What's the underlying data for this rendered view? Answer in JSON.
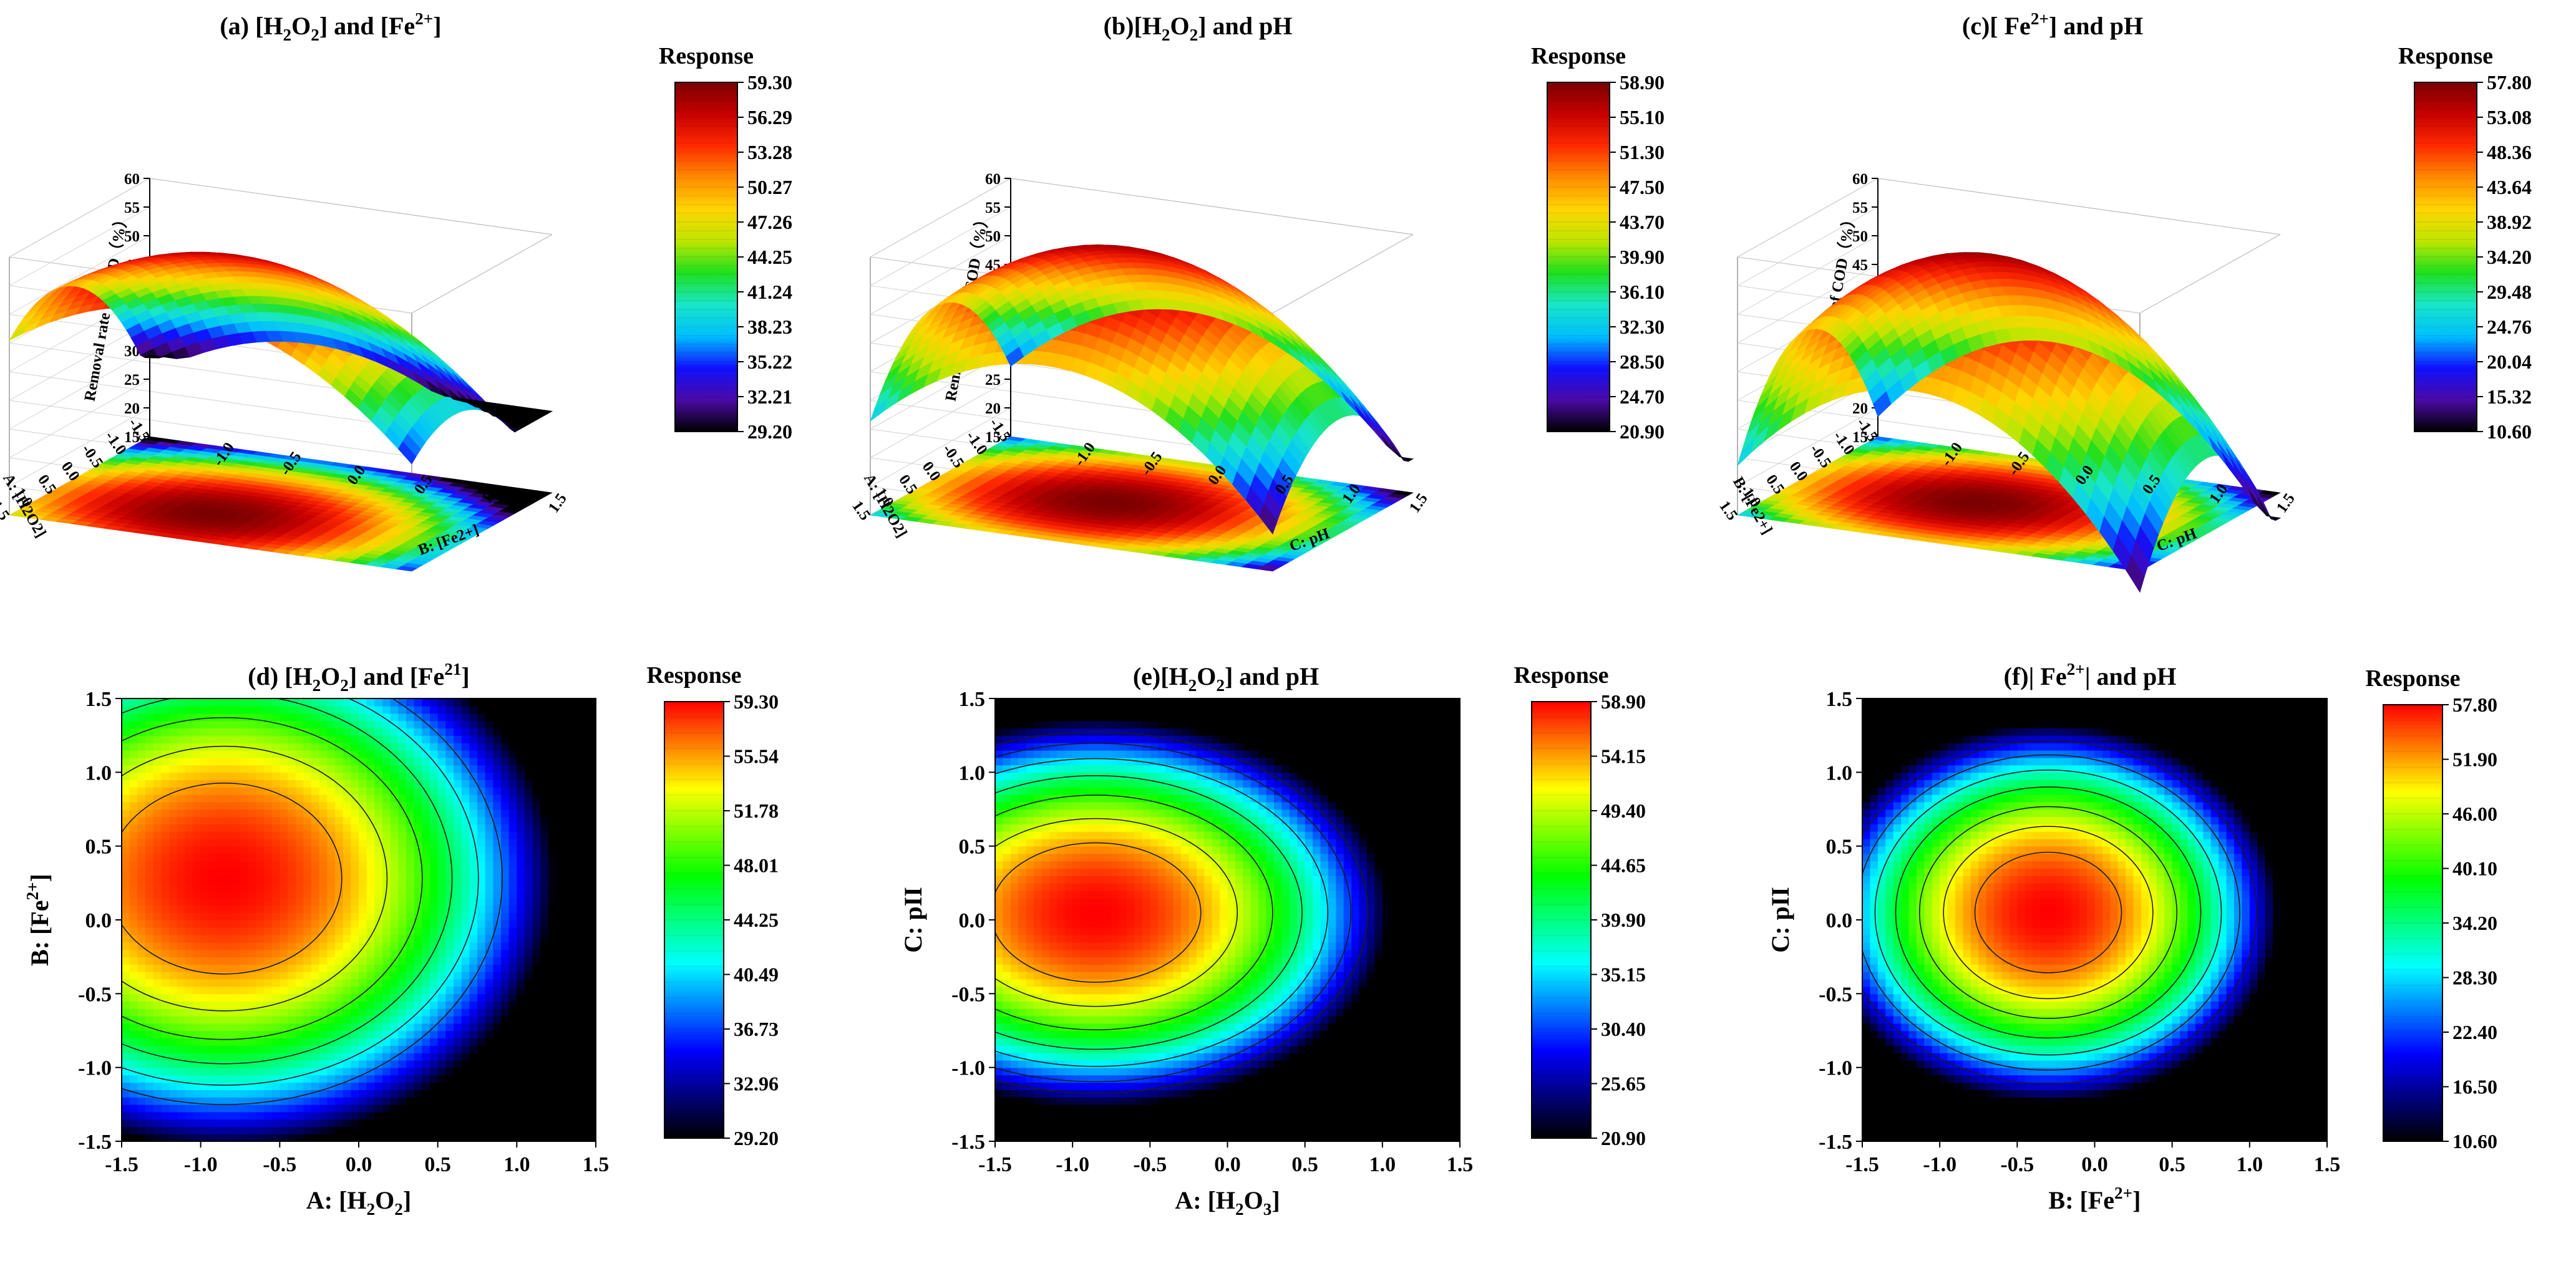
{
  "chart_data": [
    {
      "panel": "a",
      "type": "surface3d",
      "title": "(a) [H2O2] and [Fe2+]",
      "title_parts": [
        [
          "(a) [H",
          ""
        ],
        [
          "2",
          "sub"
        ],
        [
          "O",
          ""
        ],
        [
          "2",
          "sub"
        ],
        [
          "] and [Fe",
          ""
        ],
        [
          "2+",
          "sup"
        ],
        [
          "]",
          ""
        ]
      ],
      "x_label": "B: [Fe2+]",
      "y_label": "A: [H2O2]",
      "z_label": "Removal rate of COD（%）",
      "z_ticks": [
        "60",
        "55",
        "50",
        "45",
        "40",
        "35",
        "30",
        "25",
        "20",
        "15"
      ],
      "x_ticks": [
        "-1.0",
        "-0.5",
        "0.0",
        "0.5",
        "1.0",
        "1.5"
      ],
      "y_ticks": [
        "1.5",
        "1.0",
        "0.5",
        "0.0",
        "-0.5",
        "-1.0",
        "-1.5"
      ],
      "zlim": [
        15,
        60
      ],
      "peak": 59.3,
      "min": 29.2,
      "legend_title": "Response",
      "legend_values": [
        "59.30",
        "56.29",
        "53.28",
        "50.27",
        "47.26",
        "44.25",
        "41.24",
        "38.23",
        "35.22",
        "32.21",
        "29.20"
      ]
    },
    {
      "panel": "b",
      "type": "surface3d",
      "title": "(b)[H2O2] and pH",
      "title_parts": [
        [
          "(b)[H",
          ""
        ],
        [
          "2",
          "sub"
        ],
        [
          "O",
          ""
        ],
        [
          "2",
          "sub"
        ],
        [
          "] and pH",
          ""
        ]
      ],
      "x_label": "C: pH",
      "y_label": "A: [H2O2]",
      "z_label": "Removal rate of COD（%）",
      "z_ticks": [
        "60",
        "55",
        "50",
        "45",
        "40",
        "35",
        "30",
        "25",
        "20",
        "15"
      ],
      "x_ticks": [
        "-1.0",
        "-0.5",
        "0.0",
        "0.5",
        "1.0",
        "1.5"
      ],
      "y_ticks": [
        "1.5",
        "1.0",
        "0.5",
        "0.0",
        "-0.5",
        "-1.0",
        "-1.5"
      ],
      "zlim": [
        15,
        60
      ],
      "peak": 58.9,
      "min": 20.9,
      "legend_title": "Response",
      "legend_values": [
        "58.90",
        "55.10",
        "51.30",
        "47.50",
        "43.70",
        "39.90",
        "36.10",
        "32.30",
        "28.50",
        "24.70",
        "20.90"
      ]
    },
    {
      "panel": "c",
      "type": "surface3d",
      "title": "(c)[ Fe2+] and pH",
      "title_parts": [
        [
          "(c)[ Fe",
          ""
        ],
        [
          "2+",
          "sup"
        ],
        [
          "] and pH",
          ""
        ]
      ],
      "x_label": "C: pH",
      "y_label": "B: [Fe2+]",
      "z_label": "Removal rate of COD（%）",
      "z_ticks": [
        "60",
        "55",
        "50",
        "45",
        "40",
        "35",
        "30",
        "25",
        "20",
        "15"
      ],
      "x_ticks": [
        "-1.0",
        "-0.5",
        "0.0",
        "0.5",
        "1.0",
        "1.5"
      ],
      "y_ticks": [
        "1.5",
        "1.0",
        "0.5",
        "0.0",
        "-0.5",
        "-1.0",
        "-1.5"
      ],
      "zlim": [
        15,
        60
      ],
      "peak": 57.8,
      "min": 10.6,
      "legend_title": "Response",
      "legend_values": [
        "57.80",
        "53.08",
        "48.36",
        "43.64",
        "38.92",
        "34.20",
        "29.48",
        "24.76",
        "20.04",
        "15.32",
        "10.60"
      ]
    },
    {
      "panel": "d",
      "type": "contour",
      "title": "(d) [H2O2] and [Fe21]",
      "title_parts": [
        [
          "(d) [H",
          ""
        ],
        [
          "2",
          "sub"
        ],
        [
          "O",
          ""
        ],
        [
          "2",
          "sub"
        ],
        [
          "] and [Fe",
          ""
        ],
        [
          "21",
          "sup"
        ],
        [
          "]",
          ""
        ]
      ],
      "x_label": "A: [H2O2]",
      "x_label_parts": [
        [
          "A: [H",
          ""
        ],
        [
          "2",
          "sub"
        ],
        [
          "O",
          ""
        ],
        [
          "2",
          "sub"
        ],
        [
          "]",
          ""
        ]
      ],
      "y_label": "B: [Fe2+]",
      "y_label_parts": [
        [
          "B: [Fe",
          ""
        ],
        [
          "2+",
          "sup"
        ],
        [
          "]",
          ""
        ]
      ],
      "x_ticks": [
        "-1.5",
        "-1.0",
        "-0.5",
        "0.0",
        "0.5",
        "1.0",
        "1.5"
      ],
      "y_ticks": [
        "1.5",
        "1.0",
        "0.5",
        "0.0",
        "-0.5",
        "-1.0",
        "-1.5"
      ],
      "xlim": [
        -1.5,
        1.5
      ],
      "ylim": [
        -1.5,
        1.5
      ],
      "center": [
        -0.85,
        0.28
      ],
      "radii": [
        3.1,
        2.7
      ],
      "max": 59.3,
      "min": 29.2,
      "contour_levels": [
        55.5,
        52,
        48.5,
        45,
        41.5,
        38
      ],
      "legend_title": "Response",
      "legend_values": [
        "59.30",
        "55.54",
        "51.78",
        "48.01",
        "44.25",
        "40.49",
        "36.73",
        "32.96",
        "29.20"
      ]
    },
    {
      "panel": "e",
      "type": "contour",
      "title": "(e)[H2O2] and pH",
      "title_parts": [
        [
          "(e)[H",
          ""
        ],
        [
          "2",
          "sub"
        ],
        [
          "O",
          ""
        ],
        [
          "2",
          "sub"
        ],
        [
          "] and pH",
          ""
        ]
      ],
      "x_label": "A: [H2O3]",
      "x_label_parts": [
        [
          "A: [H",
          ""
        ],
        [
          "2",
          "sub"
        ],
        [
          "O",
          ""
        ],
        [
          "3",
          "sub"
        ],
        [
          "]",
          ""
        ]
      ],
      "y_label": "C: pII",
      "y_label_parts": [
        [
          "C: pII",
          ""
        ]
      ],
      "x_ticks": [
        "-1.5",
        "-1.0",
        "-0.5",
        "0.0",
        "0.5",
        "1.0",
        "1.5"
      ],
      "y_ticks": [
        "1.5",
        "1.0",
        "0.5",
        "0.0",
        "-0.5",
        "-1.0",
        "-1.5"
      ],
      "xlim": [
        -1.5,
        1.5
      ],
      "ylim": [
        -1.5,
        1.5
      ],
      "center": [
        -0.85,
        0.05
      ],
      "radii": [
        2.8,
        1.95
      ],
      "max": 58.9,
      "min": 20.9,
      "contour_levels": [
        54,
        50,
        45,
        40,
        35,
        30,
        26
      ],
      "legend_title": "Response",
      "legend_values": [
        "58.90",
        "54.15",
        "49.40",
        "44.65",
        "39.90",
        "35.15",
        "30.40",
        "25.65",
        "20.90"
      ]
    },
    {
      "panel": "f",
      "type": "contour",
      "title": "(f)| Fe2+| and pH",
      "title_parts": [
        [
          "(f)| Fe",
          ""
        ],
        [
          "2+",
          "sup"
        ],
        [
          "| and pH",
          ""
        ]
      ],
      "x_label": "B: [Fe2+]",
      "x_label_parts": [
        [
          "B: [Fe",
          ""
        ],
        [
          "2+",
          "sup"
        ],
        [
          "]",
          ""
        ]
      ],
      "y_label": "C: pII",
      "y_label_parts": [
        [
          "C: pII",
          ""
        ]
      ],
      "x_ticks": [
        "-1.5",
        "-1.0",
        "-0.5",
        "0.0",
        "0.5",
        "1.0",
        "1.5"
      ],
      "y_ticks": [
        "1.5",
        "1.0",
        "0.5",
        "0.0",
        "-0.5",
        "-1.0",
        "-1.5"
      ],
      "xlim": [
        -1.5,
        1.5
      ],
      "ylim": [
        -1.5,
        1.5
      ],
      "center": [
        -0.3,
        0.05
      ],
      "radii": [
        2.2,
        1.9
      ],
      "max": 57.8,
      "min": 10.6,
      "contour_levels": [
        53,
        48,
        43,
        37,
        31,
        25,
        19
      ],
      "legend_title": "Response",
      "legend_values": [
        "57.80",
        "51.90",
        "46.00",
        "40.10",
        "34.20",
        "28.30",
        "22.40",
        "16.50",
        "10.60"
      ]
    }
  ],
  "colors": {
    "rainbow": [
      "#000000",
      "#4b0aa8",
      "#1010ff",
      "#00bfff",
      "#19e6c8",
      "#1ee01e",
      "#bfe600",
      "#ffd500",
      "#ff8c00",
      "#ff2a00",
      "#c80000",
      "#7a0000"
    ],
    "contour_ramp": [
      "#000000",
      "#0000ff",
      "#00ffff",
      "#00ff00",
      "#ffff00",
      "#ff0000"
    ],
    "contour_line": "#1a1a1a"
  }
}
